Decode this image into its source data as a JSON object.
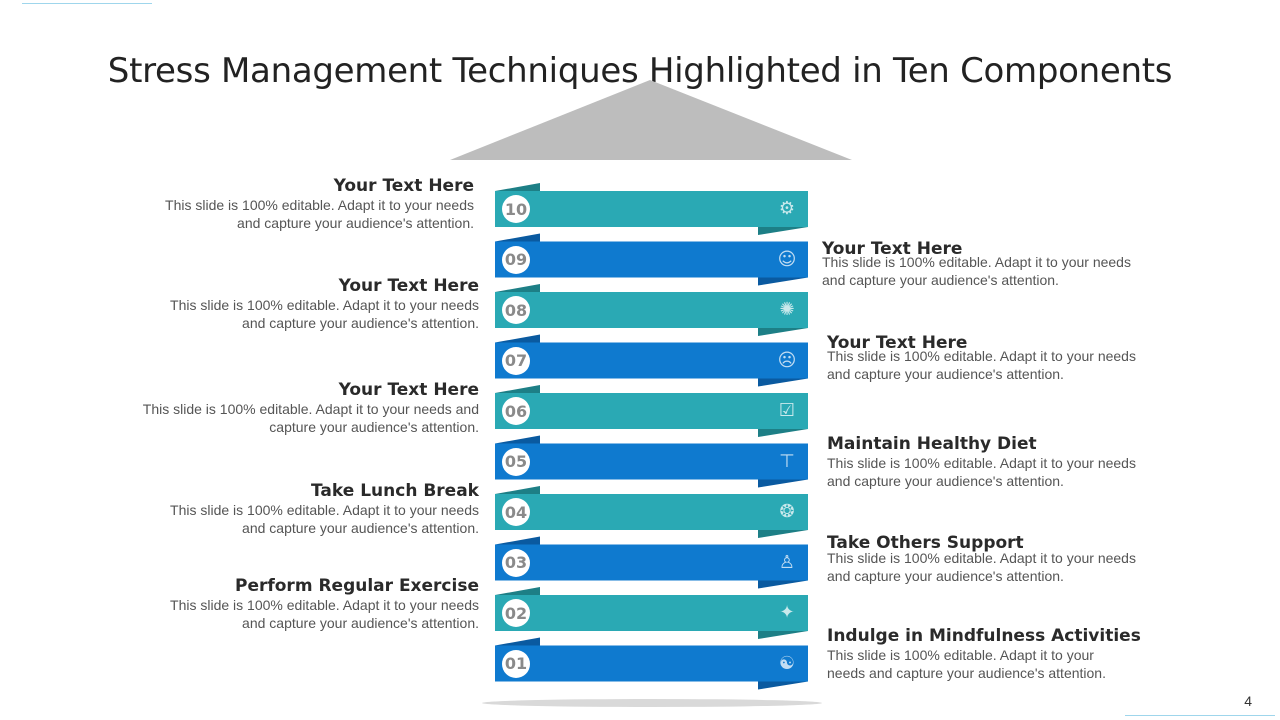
{
  "title": "Stress Management Techniques Highlighted in Ten Components",
  "page_number": "4",
  "colors": {
    "teal": "#2aa9b4",
    "teal_dark": "#1d7f86",
    "blue": "#0f7acf",
    "blue_dark": "#0a5aa0",
    "roof": "#bdbdbd"
  },
  "bands": [
    {
      "number": "10",
      "color": "teal",
      "icon": "gear-icon"
    },
    {
      "number": "09",
      "color": "blue",
      "icon": "head-person-icon"
    },
    {
      "number": "08",
      "color": "teal",
      "icon": "brain-icon"
    },
    {
      "number": "07",
      "color": "blue",
      "icon": "stress-head-icon"
    },
    {
      "number": "06",
      "color": "teal",
      "icon": "checklist-icon"
    },
    {
      "number": "05",
      "color": "blue",
      "icon": "lunch-table-icon"
    },
    {
      "number": "04",
      "color": "teal",
      "icon": "food-plate-icon"
    },
    {
      "number": "03",
      "color": "blue",
      "icon": "support-person-icon"
    },
    {
      "number": "02",
      "color": "teal",
      "icon": "lightbulb-head-icon"
    },
    {
      "number": "01",
      "color": "blue",
      "icon": "meditation-icon"
    }
  ],
  "left_items": [
    {
      "heading": "Your Text Here",
      "body": [
        "This slide is 100% editable. Adapt it to your needs",
        "and capture your audience's attention."
      ]
    },
    {
      "heading": "Your Text Here",
      "body": [
        "This slide is 100% editable. Adapt it to your needs",
        "and capture your audience's attention."
      ]
    },
    {
      "heading": "Your Text Here",
      "body": [
        "This slide is 100% editable. Adapt it to your needs and",
        "capture your audience's attention."
      ]
    },
    {
      "heading": "Take Lunch Break",
      "body": [
        "This slide is 100% editable. Adapt it to your needs",
        "and capture your audience's attention."
      ]
    },
    {
      "heading": "Perform Regular Exercise",
      "body": [
        "This slide is 100% editable. Adapt it to your needs",
        "and capture your audience's attention."
      ]
    }
  ],
  "right_items": [
    {
      "heading": "Your Text Here",
      "body": [
        "This slide is 100% editable. Adapt it to your needs",
        "and capture your audience's attention."
      ]
    },
    {
      "heading": "Your Text Here",
      "body": [
        "This slide is 100% editable. Adapt it to your needs",
        "and capture your audience's attention."
      ]
    },
    {
      "heading": "Maintain Healthy Diet",
      "body": [
        "This slide is 100% editable. Adapt it to your needs",
        "and capture your audience's attention."
      ]
    },
    {
      "heading": "Take Others Support",
      "body": [
        "This slide is 100% editable. Adapt it to your needs",
        "and capture your audience's attention."
      ]
    },
    {
      "heading": "Indulge in Mindfulness Activities",
      "body": [
        "This slide is 100% editable. Adapt it to your",
        "needs and capture your audience's attention."
      ]
    }
  ]
}
